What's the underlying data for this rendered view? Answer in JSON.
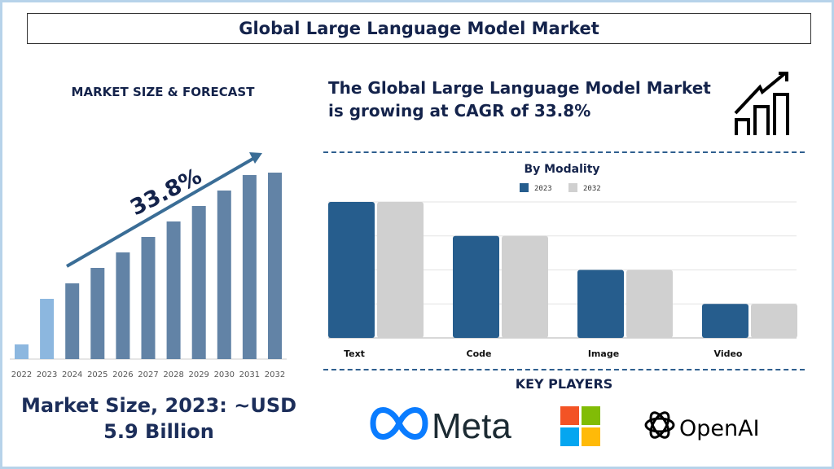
{
  "header": {
    "title": "Global Large Language Model Market"
  },
  "left": {
    "section_title": "MARKET SIZE & FORECAST",
    "market_size_text": "Market Size, 2023: ~USD 5.9 Billion"
  },
  "right": {
    "headline": "The Global Large Language Model Market is growing at CAGR of 33.8%",
    "key_players_title": "KEY PLAYERS"
  },
  "key_players": [
    {
      "name": "Meta",
      "icon": "meta-infinity-logo"
    },
    {
      "name": "Microsoft",
      "icon": "microsoft-four-squares-logo"
    },
    {
      "name": "OpenAI",
      "icon": "openai-knot-logo"
    }
  ],
  "colors": {
    "navy": "#14234b",
    "forecast_bar": "#6283a6",
    "historic_bar": "#8cb7df",
    "series_2023": "#265d8d",
    "series_2032": "#d0d0d0"
  },
  "chart_data": [
    {
      "type": "bar",
      "title": "",
      "annotation": "33.8%",
      "categories": [
        "2022",
        "2023",
        "2024",
        "2025",
        "2026",
        "2027",
        "2028",
        "2029",
        "2030",
        "2031",
        "2032"
      ],
      "values": [
        18,
        74,
        93,
        112,
        131,
        150,
        169,
        188,
        207,
        226,
        229
      ],
      "value_units": "relative (no axis shown)",
      "grid": false,
      "highlighted_historic": [
        "2022",
        "2023"
      ]
    },
    {
      "type": "bar",
      "title": "By Modality",
      "categories": [
        "Text",
        "Code",
        "Image",
        "Video"
      ],
      "series": [
        {
          "name": "2023",
          "values": [
            4,
            3,
            2,
            1
          ]
        },
        {
          "name": "2032",
          "values": [
            4,
            3,
            2,
            1
          ]
        }
      ],
      "value_units": "relative (gridline steps, no axis labels)",
      "ylim": [
        0,
        4
      ],
      "grid": true,
      "legend": "top-center"
    }
  ]
}
